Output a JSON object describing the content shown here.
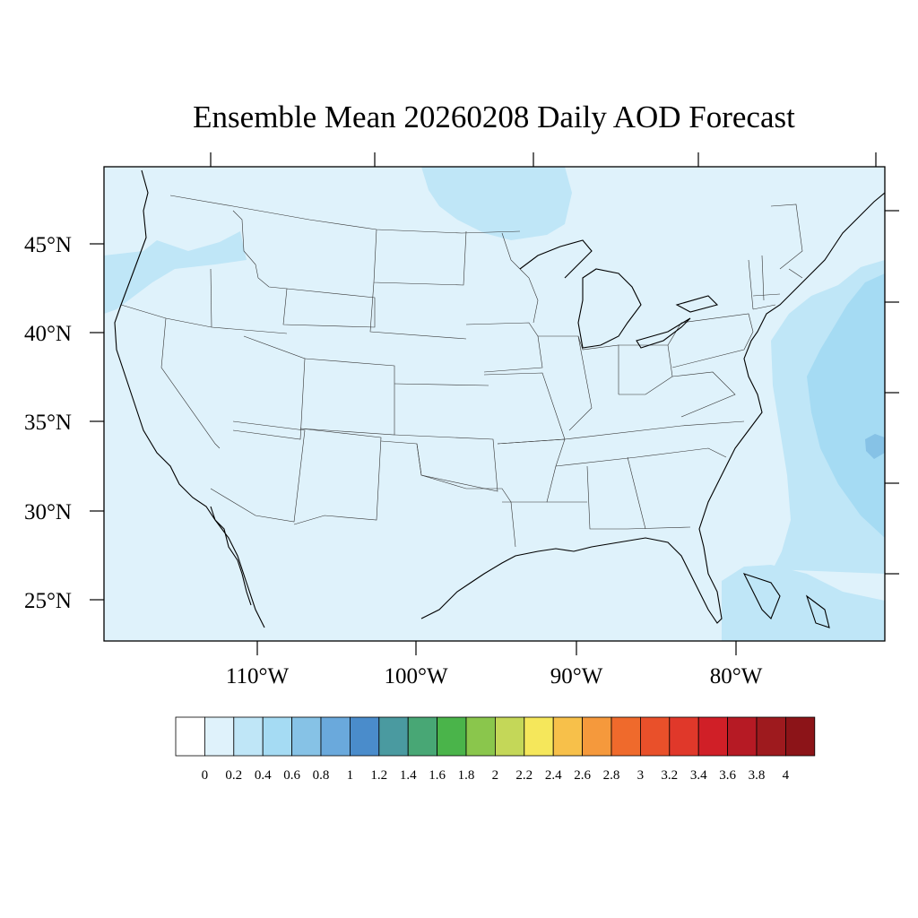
{
  "title": "Ensemble Mean 20260208 Daily AOD Forecast",
  "map": {
    "projection": "lambert-conformal",
    "region": "Contiguous United States",
    "background_color": "#dff2fb",
    "lat_labels": [
      "45°N",
      "40°N",
      "35°N",
      "30°N",
      "25°N"
    ],
    "lon_labels": [
      "110°W",
      "100°W",
      "90°W",
      "80°W"
    ],
    "field_regions": [
      {
        "name": "pacific-northwest-coast",
        "range": "0.2–0.4",
        "color": "#bfe6f7"
      },
      {
        "name": "lake-superior-area",
        "range": "0.2–0.4",
        "color": "#bfe6f7"
      },
      {
        "name": "atlantic-offshore",
        "range": "0.2–0.4",
        "color": "#bfe6f7"
      },
      {
        "name": "atlantic-offshore-core",
        "range": "0.4–0.6",
        "color": "#a5dbf3"
      },
      {
        "name": "atlantic-small-max",
        "range": "0.6–0.8",
        "color": "#86c2e6"
      },
      {
        "name": "bahamas",
        "range": "0.2–0.4",
        "color": "#bfe6f7"
      }
    ]
  },
  "colorbar": {
    "labels": [
      "0",
      "0.2",
      "0.4",
      "0.6",
      "0.8",
      "1",
      "1.2",
      "1.4",
      "1.6",
      "1.8",
      "2",
      "2.2",
      "2.4",
      "2.6",
      "2.8",
      "3",
      "3.2",
      "3.4",
      "3.6",
      "3.8",
      "4"
    ],
    "colors": [
      "#ffffff",
      "#dff2fb",
      "#bfe6f7",
      "#a5dbf3",
      "#86c2e6",
      "#6aa9dc",
      "#4a8ccb",
      "#4a9aa0",
      "#48a775",
      "#4ab44a",
      "#8ac64c",
      "#c4d758",
      "#f5e75b",
      "#f7c04a",
      "#f5993c",
      "#ef6a2c",
      "#e9502a",
      "#e0382a",
      "#d01f27",
      "#b61a24",
      "#9e1a1e",
      "#8c1418"
    ]
  }
}
